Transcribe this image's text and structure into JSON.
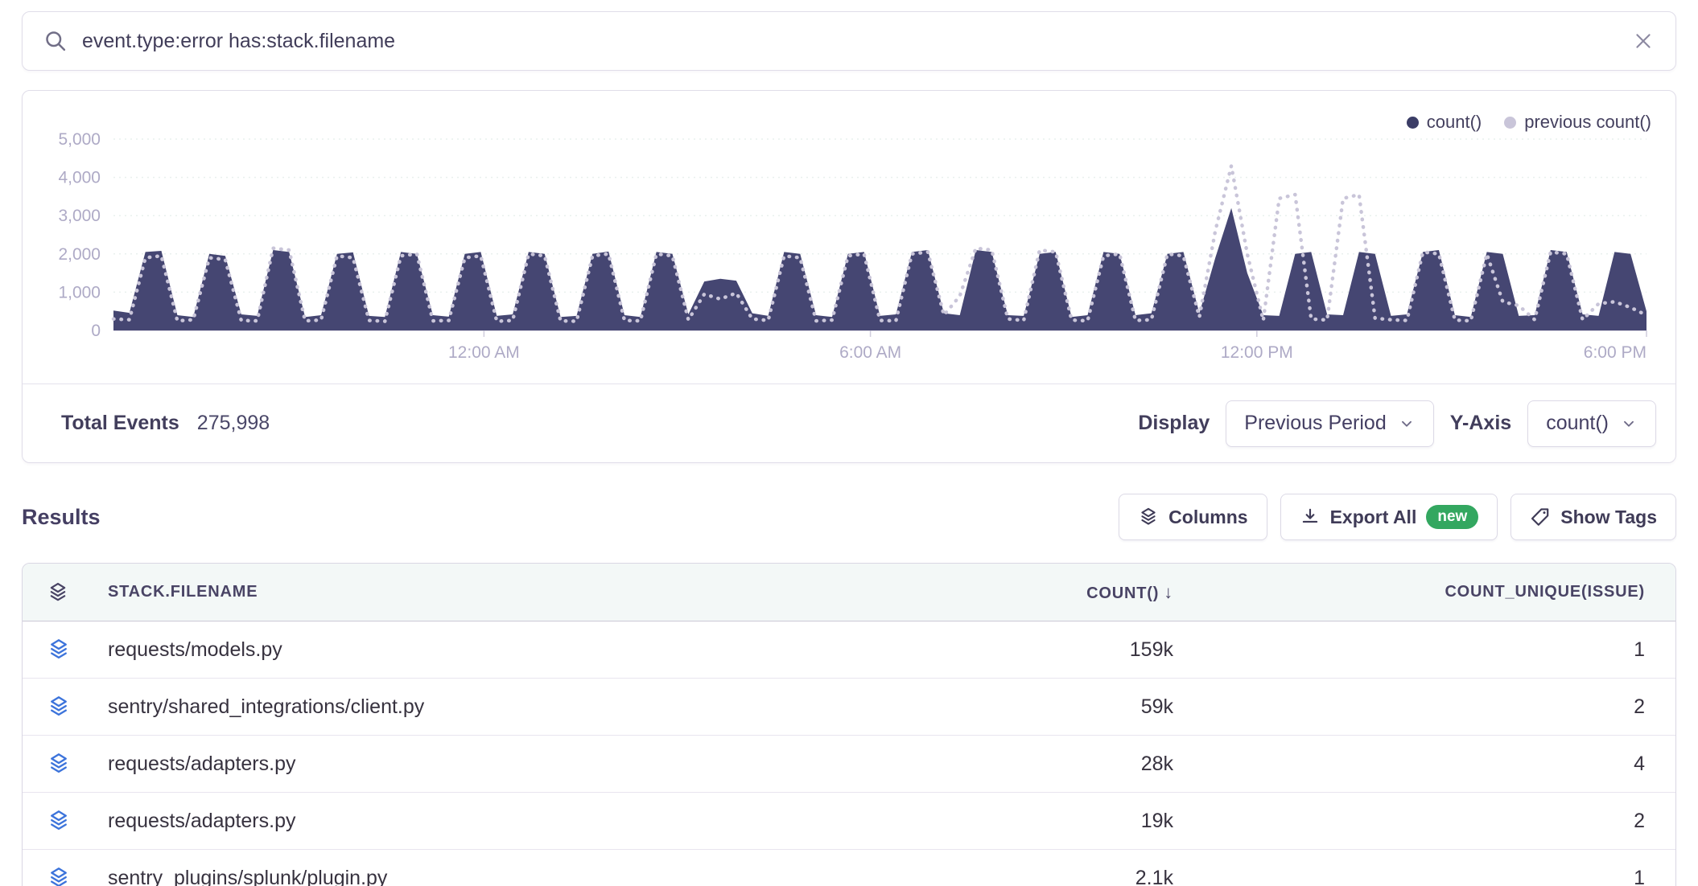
{
  "search": {
    "query": "event.type:error has:stack.filename"
  },
  "icons": {
    "sort_desc": "↓"
  },
  "colors": {
    "count_area": "#454672",
    "previous_dotted": "#c9c5d9",
    "badge_green": "#33a760",
    "row_icon_blue": "#3d74db"
  },
  "chart_data": {
    "type": "area",
    "title": "",
    "legend_position": "top-right",
    "x_axis": {
      "unit": "hours from 6:00 PM (previous day) to 6:00 PM",
      "step_hours": 0.25,
      "range_hours": [
        0,
        24
      ],
      "ticks": [
        {
          "t": 5.8,
          "label": "12:00 AM"
        },
        {
          "t": 11.85,
          "label": "6:00 AM"
        },
        {
          "t": 17.9,
          "label": "12:00 PM"
        },
        {
          "t": 24,
          "label": "6:00 PM"
        }
      ]
    },
    "y_axis": {
      "range": [
        0,
        5000
      ],
      "tick_step": 1000,
      "tick_labels": [
        "0",
        "1,000",
        "2,000",
        "3,000",
        "4,000",
        "5,000"
      ],
      "grid": true
    },
    "series": [
      {
        "name": "count()",
        "style": "area",
        "color": "#454672",
        "values": [
          520,
          460,
          2050,
          2080,
          400,
          350,
          2000,
          1950,
          420,
          380,
          2100,
          2050,
          350,
          400,
          2000,
          2040,
          380,
          350,
          2050,
          2000,
          400,
          360,
          2000,
          2050,
          380,
          420,
          2050,
          2000,
          350,
          380,
          2000,
          2060,
          400,
          350,
          2050,
          2000,
          420,
          1280,
          1350,
          1300,
          450,
          380,
          2050,
          2000,
          400,
          350,
          2000,
          2050,
          380,
          420,
          2050,
          2100,
          450,
          400,
          2100,
          2050,
          400,
          380,
          2000,
          2050,
          350,
          400,
          2050,
          2000,
          400,
          450,
          2000,
          2050,
          450,
          1900,
          3200,
          1500,
          400,
          380,
          2000,
          2050,
          420,
          400,
          2050,
          2000,
          380,
          420,
          2050,
          2100,
          400,
          350,
          2050,
          2000,
          380,
          400,
          2100,
          2050,
          420,
          380,
          2050,
          2000,
          500
        ]
      },
      {
        "name": "previous count()",
        "style": "dotted-line",
        "color": "#c9c5d9",
        "values": [
          300,
          280,
          1900,
          1950,
          250,
          280,
          1900,
          1850,
          260,
          250,
          2150,
          2100,
          250,
          270,
          1950,
          1900,
          260,
          240,
          1950,
          2000,
          250,
          260,
          1900,
          1950,
          240,
          260,
          2000,
          1950,
          250,
          240,
          1950,
          2000,
          260,
          250,
          2000,
          1950,
          280,
          950,
          820,
          980,
          300,
          260,
          1950,
          1900,
          250,
          270,
          1950,
          2000,
          260,
          250,
          2000,
          2050,
          400,
          900,
          2150,
          2100,
          300,
          260,
          2100,
          2050,
          270,
          250,
          1950,
          2000,
          260,
          280,
          2000,
          1950,
          350,
          2600,
          4300,
          2000,
          260,
          3450,
          3550,
          300,
          270,
          3450,
          3550,
          320,
          280,
          260,
          2050,
          2000,
          270,
          250,
          2000,
          750,
          650,
          280,
          2050,
          2000,
          280,
          700,
          750,
          600,
          400
        ]
      }
    ]
  },
  "summary": {
    "label": "Total Events",
    "value": "275,998"
  },
  "controls": {
    "display_label": "Display",
    "display_value": "Previous Period",
    "yaxis_label": "Y-Axis",
    "yaxis_value": "count()"
  },
  "results": {
    "title": "Results",
    "columns_button": "Columns",
    "export_button": "Export All",
    "export_badge": "new",
    "show_tags_button": "Show Tags"
  },
  "table": {
    "columns": [
      {
        "key": "filename",
        "label": "STACK.FILENAME"
      },
      {
        "key": "count",
        "label": "COUNT()",
        "sorted": "desc"
      },
      {
        "key": "unique",
        "label": "COUNT_UNIQUE(ISSUE)"
      }
    ],
    "rows": [
      {
        "filename": "requests/models.py",
        "count": "159k",
        "unique": "1"
      },
      {
        "filename": "sentry/shared_integrations/client.py",
        "count": "59k",
        "unique": "2"
      },
      {
        "filename": "requests/adapters.py",
        "count": "28k",
        "unique": "4"
      },
      {
        "filename": "requests/adapters.py",
        "count": "19k",
        "unique": "2"
      },
      {
        "filename": "sentry_plugins/splunk/plugin.py",
        "count": "2.1k",
        "unique": "1"
      }
    ]
  }
}
